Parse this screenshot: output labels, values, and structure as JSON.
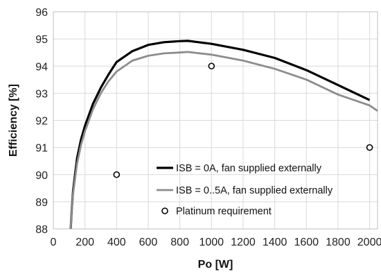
{
  "chart_data": {
    "type": "line",
    "title": "",
    "xlabel": "Po [W]",
    "ylabel": "Efficiency [%]",
    "xlim": [
      0,
      2050
    ],
    "ylim": [
      88,
      96
    ],
    "xticks": [
      0,
      200,
      400,
      600,
      800,
      1000,
      1200,
      1400,
      1600,
      1800,
      2000
    ],
    "yticks": [
      88,
      89,
      90,
      91,
      92,
      93,
      94,
      95,
      96
    ],
    "grid": true,
    "legend_position": "bottom-right",
    "series": [
      {
        "name": "ISB = 0A, fan supplied externally",
        "color": "#000000",
        "style": "line",
        "x": [
          110,
          115,
          125,
          150,
          175,
          200,
          250,
          300,
          350,
          400,
          500,
          600,
          700,
          800,
          850,
          1000,
          1200,
          1400,
          1600,
          1800,
          2000
        ],
        "y": [
          88.0,
          88.6,
          89.4,
          90.6,
          91.3,
          91.8,
          92.6,
          93.2,
          93.7,
          94.15,
          94.55,
          94.78,
          94.88,
          94.92,
          94.93,
          94.82,
          94.6,
          94.3,
          93.85,
          93.3,
          92.75
        ]
      },
      {
        "name": "ISB = 0..5A, fan supplied externally",
        "color": "#8c8c8c",
        "style": "line",
        "x": [
          110,
          115,
          125,
          150,
          175,
          200,
          250,
          300,
          350,
          400,
          500,
          600,
          700,
          800,
          850,
          1000,
          1200,
          1400,
          1600,
          1800,
          2000,
          2050
        ],
        "y": [
          88.0,
          88.6,
          89.3,
          90.4,
          91.1,
          91.6,
          92.4,
          93.0,
          93.45,
          93.8,
          94.2,
          94.38,
          94.47,
          94.5,
          94.52,
          94.42,
          94.2,
          93.9,
          93.5,
          92.95,
          92.55,
          92.35
        ]
      },
      {
        "name": "Platinum requirement",
        "color": "#000000",
        "style": "marker",
        "x": [
          400,
          1000,
          2000
        ],
        "y": [
          90,
          94,
          91
        ]
      }
    ]
  }
}
